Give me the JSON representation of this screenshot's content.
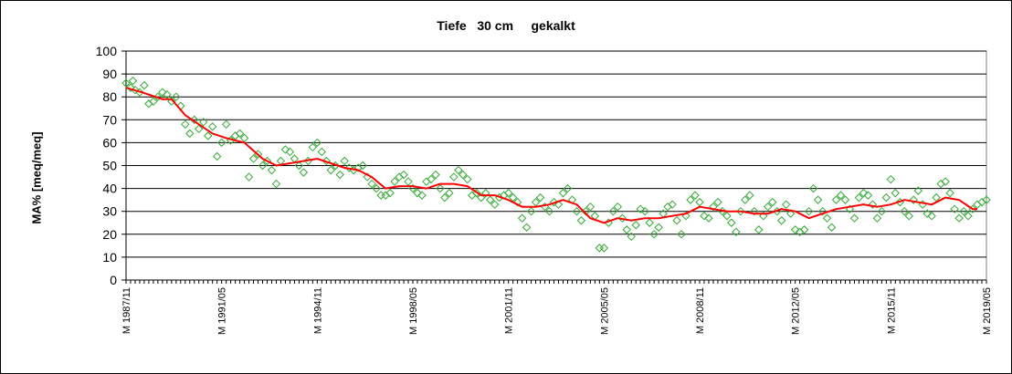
{
  "chart_data": {
    "type": "scatter",
    "title": "Tiefe   30 cm     gekalkt",
    "xlabel": "",
    "ylabel": "MA% [meq/meq]",
    "ylim": [
      0,
      100
    ],
    "yticks": [
      0,
      10,
      20,
      30,
      40,
      50,
      60,
      70,
      80,
      90,
      100
    ],
    "grid": true,
    "legend": "none",
    "x_tick_labels": [
      "M 1987/11",
      "M 1991/05",
      "M 1994/11",
      "M 1998/05",
      "M 2001/11",
      "M 2005/05",
      "M 2008/11",
      "M 2012/05",
      "M 2015/11",
      "M 2019/05"
    ],
    "x_range": [
      "1987-11",
      "2019-05"
    ],
    "colors": {
      "points": "#33aa33",
      "trend": "#ff0000",
      "grid": "#000000",
      "plot_bg": "#ffffff"
    },
    "series": [
      {
        "marker": "diamond-open",
        "points": [
          [
            "1987-11",
            86
          ],
          [
            "1988-01",
            84
          ],
          [
            "1988-02",
            87
          ],
          [
            "1988-03",
            83
          ],
          [
            "1988-05",
            82
          ],
          [
            "1988-07",
            85
          ],
          [
            "1988-09",
            77
          ],
          [
            "1988-11",
            78
          ],
          [
            "1989-01",
            80
          ],
          [
            "1989-03",
            82
          ],
          [
            "1989-05",
            81
          ],
          [
            "1989-07",
            78
          ],
          [
            "1989-09",
            80
          ],
          [
            "1989-11",
            76
          ],
          [
            "1990-01",
            68
          ],
          [
            "1990-03",
            64
          ],
          [
            "1990-05",
            70
          ],
          [
            "1990-07",
            66
          ],
          [
            "1990-09",
            69
          ],
          [
            "1990-11",
            63
          ],
          [
            "1991-01",
            67
          ],
          [
            "1991-03",
            54
          ],
          [
            "1991-05",
            60
          ],
          [
            "1991-07",
            68
          ],
          [
            "1991-09",
            61
          ],
          [
            "1991-11",
            63
          ],
          [
            "1992-01",
            64
          ],
          [
            "1992-03",
            62
          ],
          [
            "1992-05",
            45
          ],
          [
            "1992-07",
            53
          ],
          [
            "1992-09",
            55
          ],
          [
            "1992-11",
            50
          ],
          [
            "1993-01",
            52
          ],
          [
            "1993-03",
            48
          ],
          [
            "1993-05",
            42
          ],
          [
            "1993-07",
            52
          ],
          [
            "1993-09",
            57
          ],
          [
            "1993-11",
            56
          ],
          [
            "1994-01",
            53
          ],
          [
            "1994-03",
            50
          ],
          [
            "1994-05",
            47
          ],
          [
            "1994-07",
            52
          ],
          [
            "1994-09",
            58
          ],
          [
            "1994-11",
            60
          ],
          [
            "1995-01",
            56
          ],
          [
            "1995-03",
            52
          ],
          [
            "1995-05",
            48
          ],
          [
            "1995-07",
            50
          ],
          [
            "1995-09",
            46
          ],
          [
            "1995-11",
            52
          ],
          [
            "1996-01",
            49
          ],
          [
            "1996-03",
            48
          ],
          [
            "1996-05",
            49
          ],
          [
            "1996-07",
            50
          ],
          [
            "1996-09",
            45
          ],
          [
            "1996-11",
            42
          ],
          [
            "1997-01",
            40
          ],
          [
            "1997-03",
            37
          ],
          [
            "1997-05",
            37
          ],
          [
            "1997-07",
            38
          ],
          [
            "1997-09",
            43
          ],
          [
            "1997-11",
            45
          ],
          [
            "1998-01",
            46
          ],
          [
            "1998-03",
            43
          ],
          [
            "1998-05",
            40
          ],
          [
            "1998-07",
            38
          ],
          [
            "1998-09",
            37
          ],
          [
            "1998-11",
            43
          ],
          [
            "1999-01",
            44
          ],
          [
            "1999-03",
            46
          ],
          [
            "1999-05",
            40
          ],
          [
            "1999-07",
            36
          ],
          [
            "1999-09",
            38
          ],
          [
            "1999-11",
            45
          ],
          [
            "2000-01",
            48
          ],
          [
            "2000-03",
            46
          ],
          [
            "2000-05",
            44
          ],
          [
            "2000-07",
            37
          ],
          [
            "2000-09",
            38
          ],
          [
            "2000-11",
            36
          ],
          [
            "2001-01",
            38
          ],
          [
            "2001-03",
            35
          ],
          [
            "2001-05",
            33
          ],
          [
            "2001-07",
            36
          ],
          [
            "2001-09",
            37
          ],
          [
            "2001-11",
            38
          ],
          [
            "2002-01",
            36
          ],
          [
            "2002-03",
            34
          ],
          [
            "2002-05",
            27
          ],
          [
            "2002-07",
            23
          ],
          [
            "2002-09",
            30
          ],
          [
            "2002-11",
            34
          ],
          [
            "2003-01",
            36
          ],
          [
            "2003-03",
            32
          ],
          [
            "2003-05",
            30
          ],
          [
            "2003-07",
            34
          ],
          [
            "2003-09",
            33
          ],
          [
            "2003-11",
            38
          ],
          [
            "2004-01",
            40
          ],
          [
            "2004-03",
            35
          ],
          [
            "2004-05",
            30
          ],
          [
            "2004-07",
            26
          ],
          [
            "2004-09",
            30
          ],
          [
            "2004-11",
            32
          ],
          [
            "2005-01",
            28
          ],
          [
            "2005-03",
            14
          ],
          [
            "2005-05",
            14
          ],
          [
            "2005-07",
            25
          ],
          [
            "2005-09",
            30
          ],
          [
            "2005-11",
            32
          ],
          [
            "2006-01",
            27
          ],
          [
            "2006-03",
            22
          ],
          [
            "2006-05",
            19
          ],
          [
            "2006-07",
            24
          ],
          [
            "2006-09",
            31
          ],
          [
            "2006-11",
            30
          ],
          [
            "2007-01",
            25
          ],
          [
            "2007-03",
            20
          ],
          [
            "2007-05",
            23
          ],
          [
            "2007-07",
            29
          ],
          [
            "2007-09",
            32
          ],
          [
            "2007-11",
            33
          ],
          [
            "2008-01",
            26
          ],
          [
            "2008-03",
            20
          ],
          [
            "2008-05",
            28
          ],
          [
            "2008-07",
            35
          ],
          [
            "2008-09",
            37
          ],
          [
            "2008-11",
            34
          ],
          [
            "2009-01",
            28
          ],
          [
            "2009-03",
            27
          ],
          [
            "2009-05",
            32
          ],
          [
            "2009-07",
            34
          ],
          [
            "2009-09",
            30
          ],
          [
            "2009-11",
            28
          ],
          [
            "2010-01",
            25
          ],
          [
            "2010-03",
            21
          ],
          [
            "2010-05",
            30
          ],
          [
            "2010-07",
            35
          ],
          [
            "2010-09",
            37
          ],
          [
            "2010-11",
            30
          ],
          [
            "2011-01",
            22
          ],
          [
            "2011-03",
            28
          ],
          [
            "2011-05",
            32
          ],
          [
            "2011-07",
            34
          ],
          [
            "2011-09",
            30
          ],
          [
            "2011-11",
            26
          ],
          [
            "2012-01",
            33
          ],
          [
            "2012-03",
            29
          ],
          [
            "2012-05",
            22
          ],
          [
            "2012-07",
            21
          ],
          [
            "2012-09",
            22
          ],
          [
            "2012-11",
            30
          ],
          [
            "2013-01",
            40
          ],
          [
            "2013-03",
            35
          ],
          [
            "2013-05",
            30
          ],
          [
            "2013-07",
            27
          ],
          [
            "2013-09",
            23
          ],
          [
            "2013-11",
            35
          ],
          [
            "2014-01",
            37
          ],
          [
            "2014-03",
            35
          ],
          [
            "2014-05",
            31
          ],
          [
            "2014-07",
            27
          ],
          [
            "2014-09",
            36
          ],
          [
            "2014-11",
            38
          ],
          [
            "2015-01",
            37
          ],
          [
            "2015-03",
            33
          ],
          [
            "2015-05",
            27
          ],
          [
            "2015-07",
            30
          ],
          [
            "2015-09",
            36
          ],
          [
            "2015-11",
            44
          ],
          [
            "2016-01",
            38
          ],
          [
            "2016-03",
            34
          ],
          [
            "2016-05",
            30
          ],
          [
            "2016-07",
            28
          ],
          [
            "2016-09",
            35
          ],
          [
            "2016-11",
            39
          ],
          [
            "2017-01",
            33
          ],
          [
            "2017-03",
            29
          ],
          [
            "2017-05",
            28
          ],
          [
            "2017-07",
            36
          ],
          [
            "2017-09",
            42
          ],
          [
            "2017-11",
            43
          ],
          [
            "2018-01",
            38
          ],
          [
            "2018-03",
            31
          ],
          [
            "2018-05",
            27
          ],
          [
            "2018-07",
            30
          ],
          [
            "2018-09",
            28
          ],
          [
            "2018-11",
            31
          ],
          [
            "2019-01",
            33
          ],
          [
            "2019-03",
            34
          ],
          [
            "2019-05",
            35
          ]
        ]
      },
      {
        "marker": "line",
        "points": [
          [
            "1987-11",
            84
          ],
          [
            "1988-06",
            82
          ],
          [
            "1989-03",
            79
          ],
          [
            "1989-07",
            79
          ],
          [
            "1990-01",
            72
          ],
          [
            "1990-07",
            68
          ],
          [
            "1991-01",
            64
          ],
          [
            "1991-07",
            62
          ],
          [
            "1992-03",
            60
          ],
          [
            "1992-11",
            53
          ],
          [
            "1993-05",
            50
          ],
          [
            "1993-11",
            51
          ],
          [
            "1994-05",
            52
          ],
          [
            "1994-11",
            53
          ],
          [
            "1995-05",
            51
          ],
          [
            "1995-11",
            49
          ],
          [
            "1996-05",
            48
          ],
          [
            "1996-11",
            45
          ],
          [
            "1997-05",
            40
          ],
          [
            "1997-11",
            41
          ],
          [
            "1998-05",
            41
          ],
          [
            "1998-11",
            40
          ],
          [
            "1999-05",
            42
          ],
          [
            "1999-11",
            42
          ],
          [
            "2000-05",
            41
          ],
          [
            "2000-11",
            37
          ],
          [
            "2001-05",
            37
          ],
          [
            "2001-11",
            35
          ],
          [
            "2002-05",
            32
          ],
          [
            "2002-11",
            32
          ],
          [
            "2003-05",
            33
          ],
          [
            "2003-11",
            35
          ],
          [
            "2004-05",
            33
          ],
          [
            "2004-11",
            27
          ],
          [
            "2005-05",
            25
          ],
          [
            "2005-11",
            27
          ],
          [
            "2006-05",
            26
          ],
          [
            "2006-11",
            27
          ],
          [
            "2007-05",
            27
          ],
          [
            "2007-11",
            28
          ],
          [
            "2008-05",
            29
          ],
          [
            "2008-11",
            32
          ],
          [
            "2009-05",
            31
          ],
          [
            "2009-11",
            30
          ],
          [
            "2010-05",
            30
          ],
          [
            "2010-11",
            29
          ],
          [
            "2011-05",
            29
          ],
          [
            "2011-11",
            31
          ],
          [
            "2012-05",
            30
          ],
          [
            "2012-11",
            27
          ],
          [
            "2013-05",
            29
          ],
          [
            "2013-11",
            31
          ],
          [
            "2014-05",
            32
          ],
          [
            "2014-11",
            33
          ],
          [
            "2015-05",
            32
          ],
          [
            "2015-11",
            33
          ],
          [
            "2016-05",
            35
          ],
          [
            "2016-11",
            34
          ],
          [
            "2017-05",
            33
          ],
          [
            "2017-11",
            36
          ],
          [
            "2018-05",
            35
          ],
          [
            "2018-11",
            31
          ],
          [
            "2019-01",
            31
          ]
        ]
      }
    ]
  }
}
